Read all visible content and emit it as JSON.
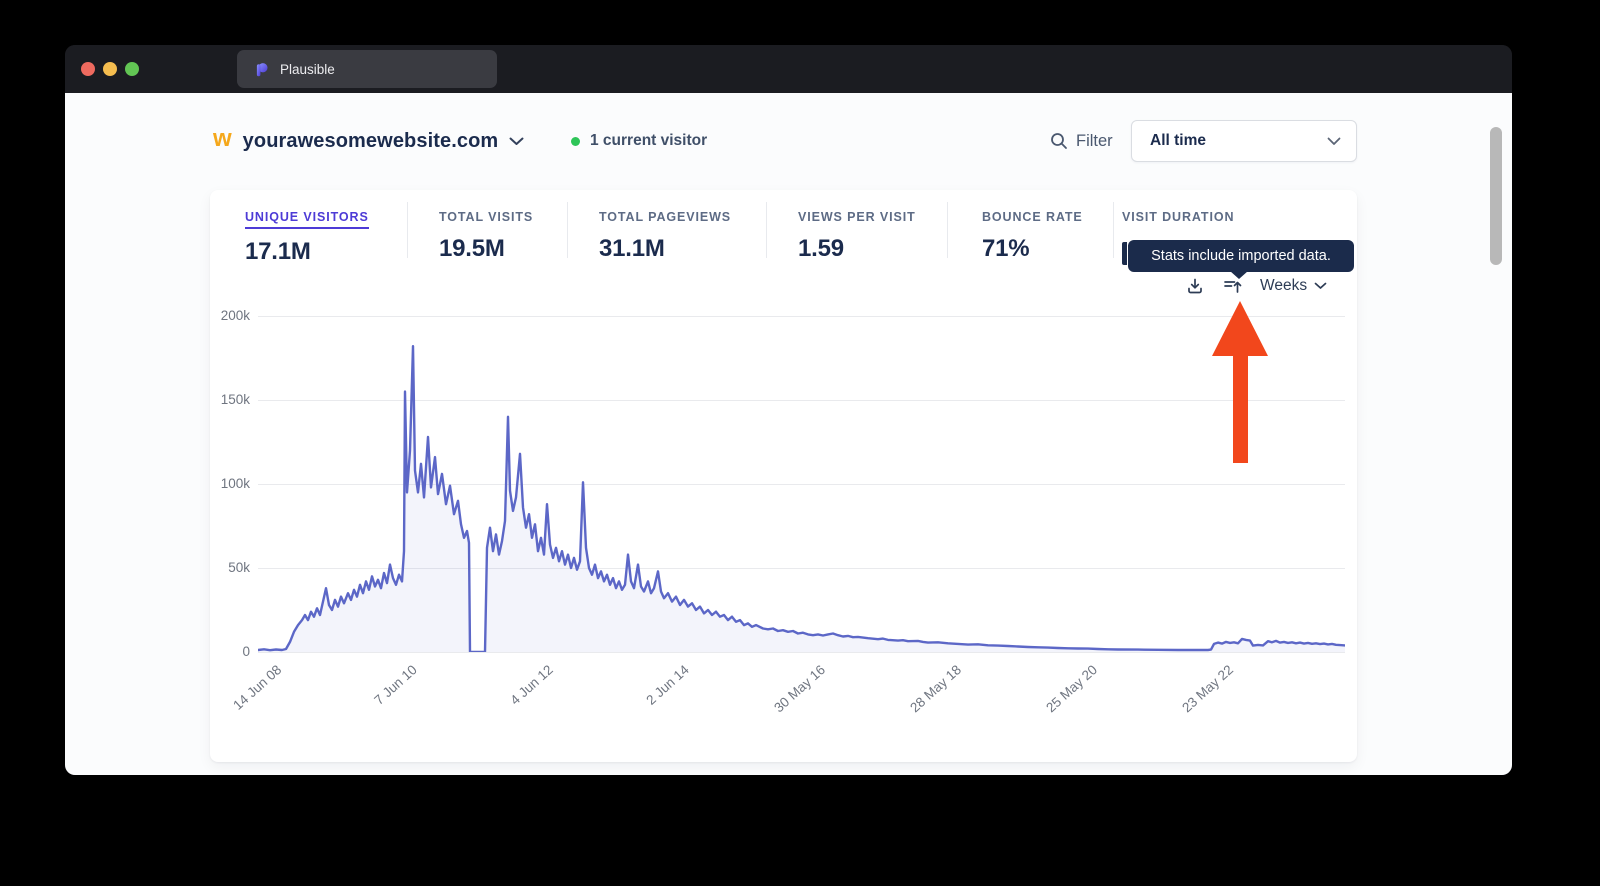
{
  "window": {
    "tab_label": "Plausible",
    "traffic_lights": [
      "close",
      "minimize",
      "zoom"
    ]
  },
  "header": {
    "favicon_glyph": "w",
    "site_name": "yourawesomewebsite.com",
    "current_visitor_text": "1 current visitor",
    "filter_label": "Filter",
    "date_range_value": "All time"
  },
  "stats": {
    "items": [
      {
        "label": "UNIQUE VISITORS",
        "value": "17.1M",
        "active": true
      },
      {
        "label": "TOTAL VISITS",
        "value": "19.5M",
        "active": false
      },
      {
        "label": "TOTAL PAGEVIEWS",
        "value": "31.1M",
        "active": false
      },
      {
        "label": "VIEWS PER VISIT",
        "value": "1.59",
        "active": false
      },
      {
        "label": "BOUNCE RATE",
        "value": "71%",
        "active": false
      },
      {
        "label": "VISIT DURATION",
        "value": "",
        "active": false,
        "value_hidden_by_tooltip": true
      }
    ]
  },
  "tooltip": {
    "text": "Stats include imported data."
  },
  "toolbar": {
    "interval": "Weeks",
    "icons": [
      "download-icon",
      "imported-data-icon"
    ]
  },
  "colors": {
    "accent_indigo": "#4d3bd6",
    "chart_line": "#5c67c7",
    "visitor_dot_green": "#2ec558",
    "favicon_yellow": "#f5a81c",
    "annotation_arrow_red": "#f2471c",
    "tooltip_bg": "#1b2b4b",
    "navy_text": "#1b2b4d"
  },
  "chart_data": {
    "type": "line",
    "title": "Unique visitors over time (weekly intervals)",
    "x_tick_labels": [
      "14 Jun 08",
      "7 Jun 10",
      "4 Jun 12",
      "2 Jun 14",
      "30 May 16",
      "28 May 18",
      "25 May 20",
      "23 May 22"
    ],
    "y_tick_labels": [
      "0",
      "50k",
      "100k",
      "150k",
      "200k"
    ],
    "ylim_k": [
      0,
      200
    ],
    "y_unit": "thousands of visitors",
    "grid": "horizontal",
    "legend": "none",
    "line_color": "#5c67c7",
    "points": [
      [
        0,
        1.2
      ],
      [
        6,
        1.6
      ],
      [
        12,
        1.1
      ],
      [
        18,
        1.5
      ],
      [
        24,
        1.2
      ],
      [
        28,
        1.8
      ],
      [
        32,
        6
      ],
      [
        36,
        12
      ],
      [
        40,
        16
      ],
      [
        44,
        19
      ],
      [
        47,
        22
      ],
      [
        50,
        19
      ],
      [
        53,
        24
      ],
      [
        56,
        21
      ],
      [
        59,
        26
      ],
      [
        62,
        22
      ],
      [
        65,
        30
      ],
      [
        68,
        38
      ],
      [
        71,
        28
      ],
      [
        74,
        25
      ],
      [
        77,
        31
      ],
      [
        80,
        27
      ],
      [
        83,
        33
      ],
      [
        86,
        29
      ],
      [
        90,
        35
      ],
      [
        93,
        31
      ],
      [
        96,
        37
      ],
      [
        99,
        33
      ],
      [
        102,
        40
      ],
      [
        105,
        35
      ],
      [
        108,
        42
      ],
      [
        111,
        37
      ],
      [
        114,
        45
      ],
      [
        117,
        39
      ],
      [
        120,
        43
      ],
      [
        123,
        38
      ],
      [
        126,
        47
      ],
      [
        129,
        41
      ],
      [
        132,
        52
      ],
      [
        135,
        44
      ],
      [
        138,
        40
      ],
      [
        141,
        46
      ],
      [
        144,
        42
      ],
      [
        146,
        60
      ],
      [
        147,
        155
      ],
      [
        149,
        95
      ],
      [
        152,
        120
      ],
      [
        155,
        182
      ],
      [
        157,
        108
      ],
      [
        160,
        95
      ],
      [
        163,
        112
      ],
      [
        166,
        92
      ],
      [
        170,
        128
      ],
      [
        173,
        98
      ],
      [
        177,
        116
      ],
      [
        180,
        94
      ],
      [
        184,
        106
      ],
      [
        188,
        88
      ],
      [
        192,
        99
      ],
      [
        196,
        82
      ],
      [
        200,
        90
      ],
      [
        203,
        76
      ],
      [
        206,
        68
      ],
      [
        209,
        72
      ],
      [
        211,
        65
      ],
      [
        212,
        0
      ],
      [
        227,
        0
      ],
      [
        229,
        62
      ],
      [
        232,
        74
      ],
      [
        235,
        60
      ],
      [
        238,
        70
      ],
      [
        241,
        58
      ],
      [
        244,
        66
      ],
      [
        247,
        78
      ],
      [
        250,
        140
      ],
      [
        252,
        96
      ],
      [
        255,
        84
      ],
      [
        258,
        92
      ],
      [
        262,
        118
      ],
      [
        265,
        86
      ],
      [
        268,
        74
      ],
      [
        271,
        82
      ],
      [
        274,
        68
      ],
      [
        277,
        76
      ],
      [
        280,
        60
      ],
      [
        283,
        68
      ],
      [
        286,
        58
      ],
      [
        289,
        88
      ],
      [
        292,
        64
      ],
      [
        295,
        56
      ],
      [
        298,
        62
      ],
      [
        301,
        54
      ],
      [
        304,
        60
      ],
      [
        307,
        52
      ],
      [
        310,
        58
      ],
      [
        313,
        50
      ],
      [
        316,
        56
      ],
      [
        319,
        49
      ],
      [
        322,
        54
      ],
      [
        325,
        101
      ],
      [
        328,
        62
      ],
      [
        331,
        50
      ],
      [
        334,
        46
      ],
      [
        337,
        52
      ],
      [
        340,
        44
      ],
      [
        343,
        48
      ],
      [
        346,
        42
      ],
      [
        349,
        46
      ],
      [
        352,
        40
      ],
      [
        355,
        44
      ],
      [
        358,
        38
      ],
      [
        361,
        42
      ],
      [
        364,
        37
      ],
      [
        367,
        40
      ],
      [
        370,
        58
      ],
      [
        373,
        42
      ],
      [
        376,
        38
      ],
      [
        380,
        52
      ],
      [
        383,
        39
      ],
      [
        386,
        36
      ],
      [
        390,
        42
      ],
      [
        393,
        35
      ],
      [
        396,
        38
      ],
      [
        400,
        48
      ],
      [
        403,
        36
      ],
      [
        406,
        32
      ],
      [
        410,
        35
      ],
      [
        414,
        30
      ],
      [
        418,
        33
      ],
      [
        422,
        28
      ],
      [
        426,
        31
      ],
      [
        430,
        27
      ],
      [
        434,
        29
      ],
      [
        438,
        25
      ],
      [
        442,
        27
      ],
      [
        446,
        23
      ],
      [
        450,
        25
      ],
      [
        454,
        22
      ],
      [
        458,
        24
      ],
      [
        462,
        21
      ],
      [
        466,
        22
      ],
      [
        470,
        19
      ],
      [
        474,
        21
      ],
      [
        478,
        18
      ],
      [
        482,
        19
      ],
      [
        486,
        16
      ],
      [
        490,
        17
      ],
      [
        494,
        15
      ],
      [
        498,
        16
      ],
      [
        505,
        14
      ],
      [
        510,
        13.5
      ],
      [
        515,
        14
      ],
      [
        520,
        12.5
      ],
      [
        525,
        13
      ],
      [
        530,
        12
      ],
      [
        535,
        12.5
      ],
      [
        540,
        11
      ],
      [
        545,
        11.5
      ],
      [
        550,
        10.5
      ],
      [
        555,
        10
      ],
      [
        560,
        10.5
      ],
      [
        565,
        9.8
      ],
      [
        570,
        10.5
      ],
      [
        575,
        11
      ],
      [
        580,
        10
      ],
      [
        585,
        9.2
      ],
      [
        590,
        9.6
      ],
      [
        595,
        8.8
      ],
      [
        600,
        9
      ],
      [
        610,
        8.2
      ],
      [
        620,
        7.6
      ],
      [
        625,
        8
      ],
      [
        630,
        7.2
      ],
      [
        640,
        6.8
      ],
      [
        645,
        7
      ],
      [
        650,
        6.4
      ],
      [
        660,
        6.6
      ],
      [
        665,
        6
      ],
      [
        670,
        5.6
      ],
      [
        680,
        5.8
      ],
      [
        690,
        5.2
      ],
      [
        700,
        4.8
      ],
      [
        710,
        4.4
      ],
      [
        720,
        4.6
      ],
      [
        730,
        4
      ],
      [
        740,
        3.8
      ],
      [
        750,
        3.6
      ],
      [
        760,
        3.3
      ],
      [
        770,
        3
      ],
      [
        780,
        2.8
      ],
      [
        790,
        2.6
      ],
      [
        800,
        2.4
      ],
      [
        810,
        2.2
      ],
      [
        820,
        2.1
      ],
      [
        830,
        2
      ],
      [
        840,
        1.8
      ],
      [
        850,
        1.6
      ],
      [
        860,
        1.5
      ],
      [
        880,
        1.4
      ],
      [
        900,
        1.3
      ],
      [
        920,
        1.2
      ],
      [
        940,
        1.2
      ],
      [
        950,
        1.2
      ],
      [
        953,
        1.4
      ],
      [
        956,
        4.8
      ],
      [
        960,
        5.6
      ],
      [
        964,
        5
      ],
      [
        968,
        6
      ],
      [
        972,
        5.4
      ],
      [
        976,
        5.8
      ],
      [
        980,
        5.2
      ],
      [
        984,
        7.8
      ],
      [
        988,
        7.2
      ],
      [
        992,
        6.8
      ],
      [
        995,
        3.8
      ],
      [
        1000,
        4.2
      ],
      [
        1005,
        3.9
      ],
      [
        1010,
        6.4
      ],
      [
        1014,
        5.8
      ],
      [
        1018,
        6.6
      ],
      [
        1022,
        5.6
      ],
      [
        1026,
        6
      ],
      [
        1030,
        5.4
      ],
      [
        1034,
        5.8
      ],
      [
        1038,
        5.2
      ],
      [
        1042,
        5.6
      ],
      [
        1046,
        5
      ],
      [
        1050,
        5.4
      ],
      [
        1054,
        4.9
      ],
      [
        1058,
        5.2
      ],
      [
        1062,
        4.7
      ],
      [
        1066,
        5
      ],
      [
        1070,
        4.5
      ],
      [
        1074,
        4.8
      ],
      [
        1078,
        4.3
      ],
      [
        1082,
        4.1
      ],
      [
        1087,
        3.9
      ]
    ]
  }
}
